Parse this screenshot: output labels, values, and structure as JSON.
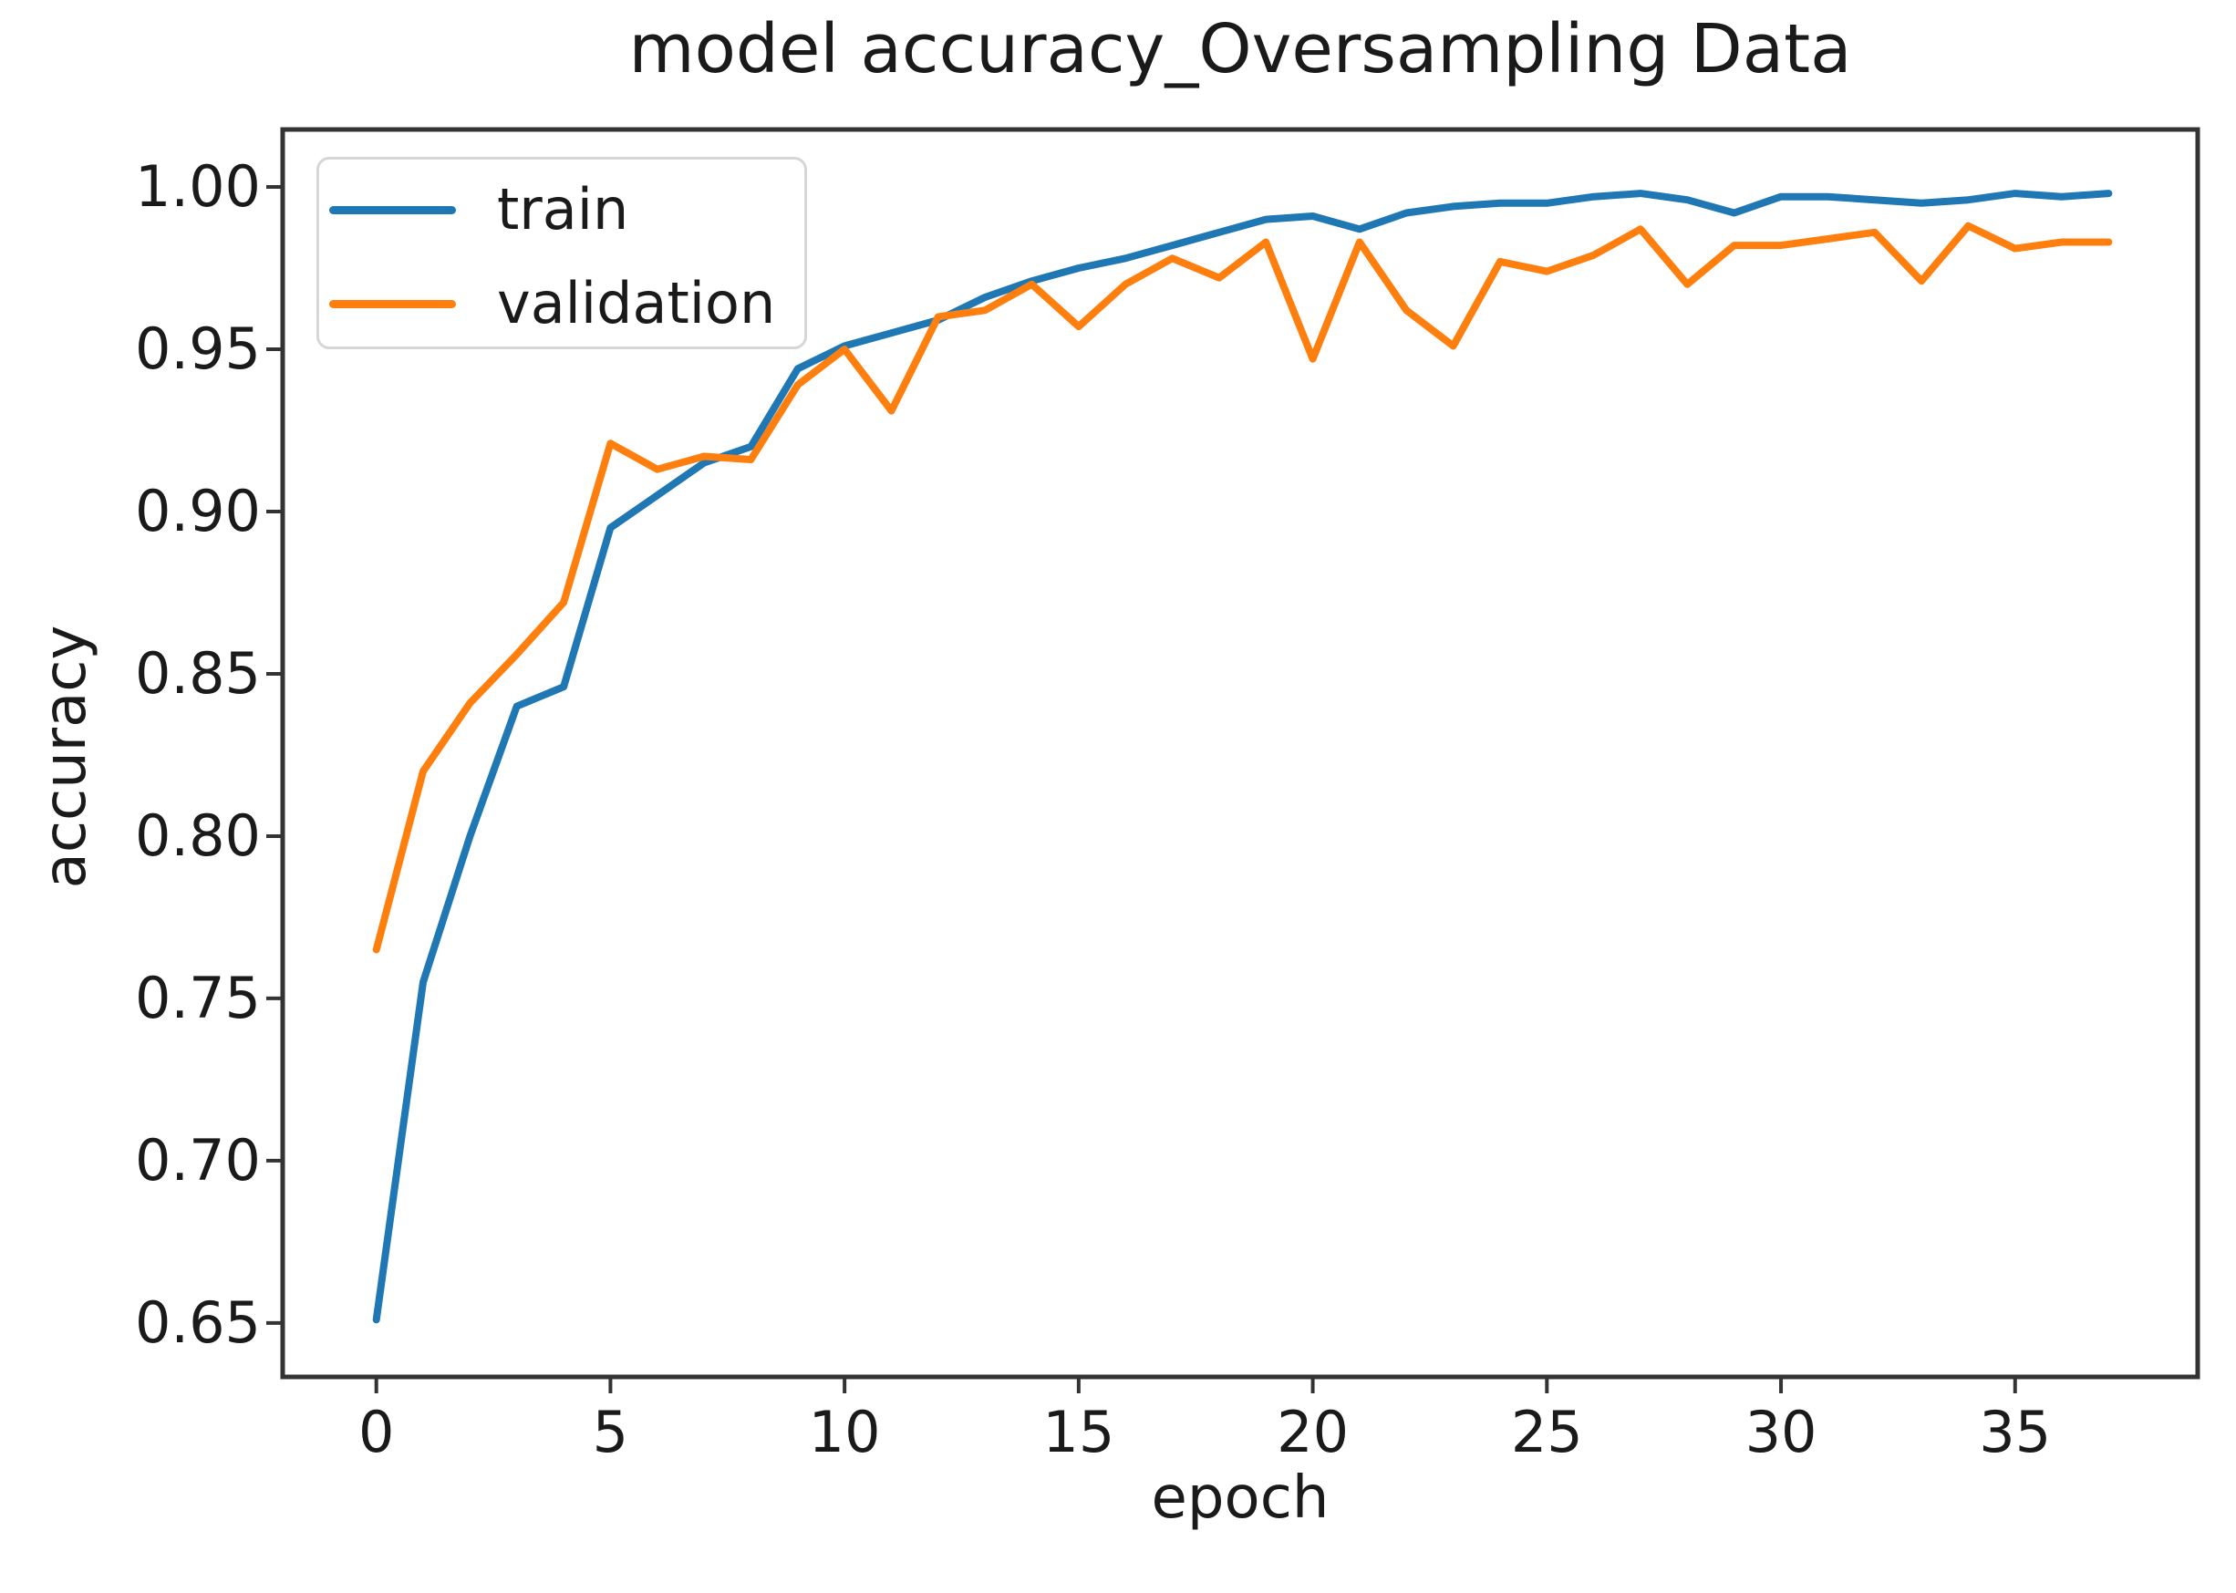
{
  "chart_data": {
    "type": "line",
    "title": "model accuracy_Oversampling Data",
    "xlabel": "epoch",
    "ylabel": "accuracy",
    "grid": false,
    "legend_position": "upper left",
    "xlim": [
      -2.0,
      38.9
    ],
    "ylim": [
      0.6334,
      1.0177
    ],
    "x_ticks": [
      0,
      5,
      10,
      15,
      20,
      25,
      30,
      35
    ],
    "x_tick_labels": [
      "0",
      "5",
      "10",
      "15",
      "20",
      "25",
      "30",
      "35"
    ],
    "y_ticks": [
      0.65,
      0.7,
      0.75,
      0.8,
      0.85,
      0.9,
      0.95,
      1.0
    ],
    "y_tick_labels": [
      "0.65",
      "0.70",
      "0.75",
      "0.80",
      "0.85",
      "0.90",
      "0.95",
      "1.00"
    ],
    "x": [
      0,
      1,
      2,
      3,
      4,
      5,
      6,
      7,
      8,
      9,
      10,
      11,
      12,
      13,
      14,
      15,
      16,
      17,
      18,
      19,
      20,
      21,
      22,
      23,
      24,
      25,
      26,
      27,
      28,
      29,
      30,
      31,
      32,
      33,
      34,
      35,
      36,
      37
    ],
    "series": [
      {
        "name": "train",
        "color": "#1f77b4",
        "values": [
          0.651,
          0.755,
          0.8,
          0.84,
          0.846,
          0.895,
          0.905,
          0.915,
          0.92,
          0.944,
          0.951,
          0.955,
          0.959,
          0.966,
          0.971,
          0.975,
          0.978,
          0.982,
          0.986,
          0.99,
          0.991,
          0.987,
          0.992,
          0.994,
          0.995,
          0.995,
          0.997,
          0.998,
          0.996,
          0.992,
          0.997,
          0.997,
          0.996,
          0.995,
          0.996,
          0.998,
          0.997,
          0.998
        ]
      },
      {
        "name": "validation",
        "color": "#ff7f0e",
        "values": [
          0.765,
          0.82,
          0.841,
          0.856,
          0.872,
          0.921,
          0.913,
          0.917,
          0.916,
          0.939,
          0.95,
          0.931,
          0.96,
          0.962,
          0.97,
          0.957,
          0.97,
          0.978,
          0.972,
          0.983,
          0.947,
          0.983,
          0.962,
          0.951,
          0.977,
          0.974,
          0.979,
          0.987,
          0.97,
          0.982,
          0.982,
          0.984,
          0.986,
          0.971,
          0.988,
          0.981,
          0.983,
          0.983
        ]
      }
    ]
  },
  "style": {
    "spine_color": "#333333",
    "text_color": "#1a1a1a",
    "background": "#ffffff"
  }
}
